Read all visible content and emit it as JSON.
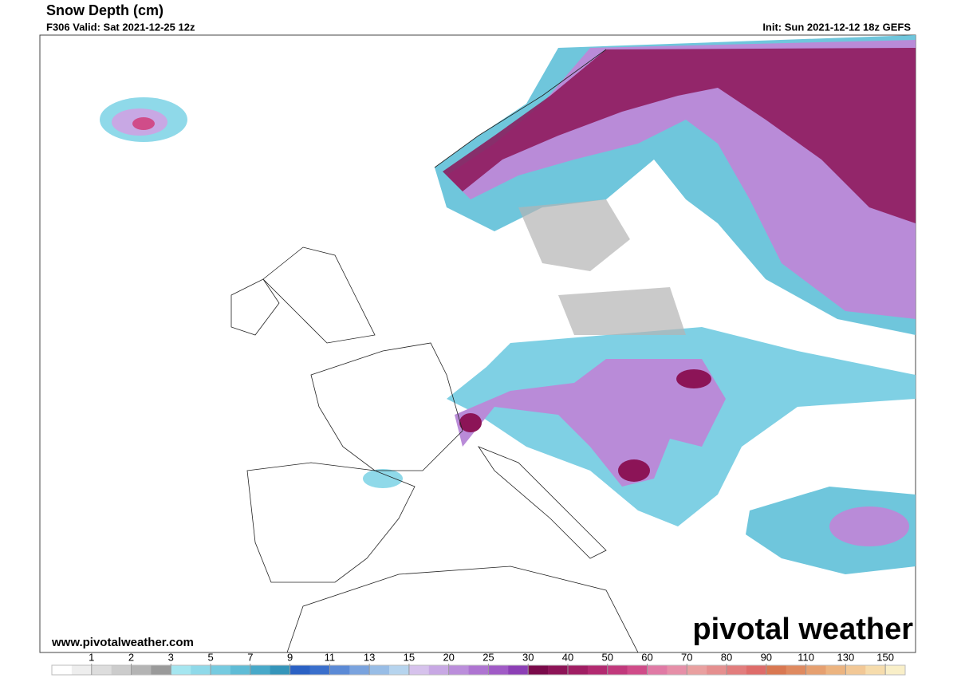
{
  "header": {
    "title": "Snow Depth (cm)",
    "valid": "F306 Valid: Sat 2021-12-25 12z",
    "init": "Init: Sun 2021-12-12 18z GEFS"
  },
  "map": {
    "site": "www.pivotalweather.com",
    "logo": "pivotal weather"
  },
  "legend": {
    "ticks": [
      1,
      2,
      3,
      5,
      7,
      9,
      11,
      13,
      15,
      20,
      25,
      30,
      40,
      50,
      60,
      70,
      80,
      90,
      110,
      130,
      150
    ],
    "colors": [
      "#ffffff",
      "#eeeeee",
      "#dddddd",
      "#cccccc",
      "#b4b4b4",
      "#9a9a9a",
      "#a5e6f0",
      "#8fd9e9",
      "#76cbe0",
      "#5fbcd6",
      "#48a9c9",
      "#3595ba",
      "#2b61c4",
      "#3a6fcc",
      "#5b8ad6",
      "#7aa3de",
      "#98bde6",
      "#b6d4ee",
      "#d6c2ec",
      "#c8a8e4",
      "#bb8edb",
      "#ae74d1",
      "#a05bc6",
      "#8c3fb5",
      "#7a0a4a",
      "#8d1457",
      "#a01e63",
      "#b22a70",
      "#c1397c",
      "#d04c89",
      "#e07aa5",
      "#e68fa8",
      "#e9a0a0",
      "#e58f8f",
      "#e27d7d",
      "#de6c6a",
      "#d97852",
      "#df8a60",
      "#e6a070",
      "#ecb480",
      "#f2c896",
      "#f6dcac",
      "#f9efc8"
    ]
  }
}
